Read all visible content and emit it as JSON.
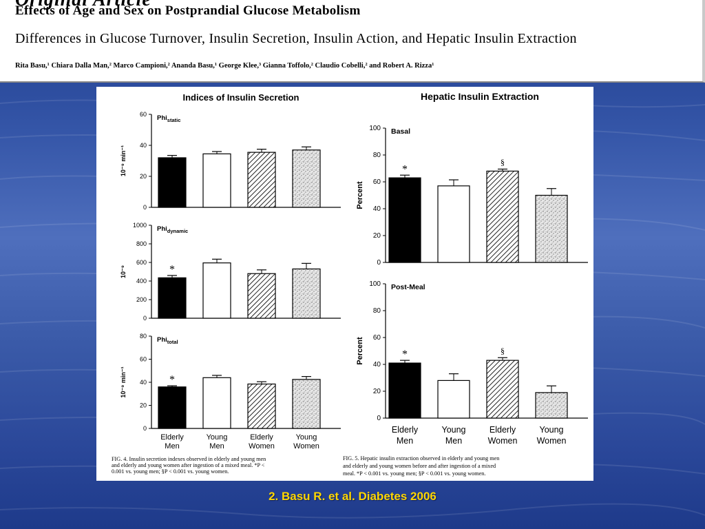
{
  "header": {
    "journal": "Original Article",
    "title": "Effects of Age and Sex on Postprandial Glucose Metabolism",
    "subtitle": "Differences in Glucose Turnover, Insulin Secretion, Insulin Action, and Hepatic Insulin Extraction",
    "authors": "Rita Basu,¹ Chiara Dalla Man,² Marco Campioni,² Ananda Basu,¹ George Klee,³ Gianna Toffolo,² Claudio Cobelli,² and Robert A. Rizza¹"
  },
  "figure": {
    "left_title": "Indices of Insulin Secretion",
    "right_title": "Hepatic Insulin Extraction",
    "left_caption": [
      "FIG. 4. Insulin secretion indexes observed in elderly and young men",
      "and elderly and young women after ingestion of a mixed meal. *P <",
      "0.001 vs. young men; §P < 0.001 vs. young women."
    ],
    "right_caption": [
      "FIG. 5. Hepatic insulin extraction observed in elderly and young men",
      "and elderly and young women before and after ingestion of a mixed",
      "meal. *P < 0.001 vs. young men; §P < 0.001 vs. young women."
    ]
  },
  "citation": "2. Basu R. et al. Diabetes 2006",
  "chart_data": [
    {
      "type": "bar",
      "panel": "left",
      "title": "Phi_static",
      "ylabel": "10⁻⁹ min⁻¹",
      "ylim": [
        0,
        60
      ],
      "yticks": [
        0,
        20,
        40,
        60
      ],
      "categories": [
        "Elderly Men",
        "Young Men",
        "Elderly Women",
        "Young Women"
      ],
      "values": [
        32,
        34.5,
        35.5,
        37
      ],
      "errors": [
        1.5,
        1.5,
        2,
        2
      ],
      "annotations": [
        "",
        "",
        "",
        ""
      ],
      "fills": [
        "black",
        "white",
        "hatch",
        "stipple"
      ],
      "show_xlabels": false
    },
    {
      "type": "bar",
      "panel": "left",
      "title": "Phi_dynamic",
      "ylabel": "10⁻⁹",
      "ylim": [
        0,
        1000
      ],
      "yticks": [
        0,
        200,
        400,
        600,
        800,
        1000
      ],
      "categories": [
        "Elderly Men",
        "Young Men",
        "Elderly Women",
        "Young Women"
      ],
      "values": [
        435,
        595,
        480,
        530
      ],
      "errors": [
        25,
        40,
        40,
        60
      ],
      "annotations": [
        "*",
        "",
        "",
        ""
      ],
      "fills": [
        "black",
        "white",
        "hatch",
        "stipple"
      ],
      "show_xlabels": false
    },
    {
      "type": "bar",
      "panel": "left",
      "title": "Phi_total",
      "ylabel": "10⁻⁹ min⁻¹",
      "ylim": [
        0,
        80
      ],
      "yticks": [
        0,
        20,
        40,
        60,
        80
      ],
      "categories": [
        "Elderly Men",
        "Young Men",
        "Elderly Women",
        "Young Women"
      ],
      "values": [
        36,
        44,
        38.5,
        42.5
      ],
      "errors": [
        1,
        2,
        2,
        2.5
      ],
      "annotations": [
        "*",
        "",
        "",
        ""
      ],
      "fills": [
        "black",
        "white",
        "hatch",
        "stipple"
      ],
      "show_xlabels": true
    },
    {
      "type": "bar",
      "panel": "right",
      "title": "Basal",
      "ylabel": "Percent",
      "ylim": [
        0,
        100
      ],
      "yticks": [
        0,
        20,
        40,
        60,
        80,
        100
      ],
      "categories": [
        "Elderly Men",
        "Young Men",
        "Elderly Women",
        "Young Women"
      ],
      "values": [
        63,
        57,
        68,
        50
      ],
      "errors": [
        2,
        4.5,
        1.5,
        5
      ],
      "annotations": [
        "*",
        "",
        "§",
        ""
      ],
      "fills": [
        "black",
        "white",
        "hatch",
        "stipple"
      ],
      "show_xlabels": false
    },
    {
      "type": "bar",
      "panel": "right",
      "title": "Post-Meal",
      "ylabel": "Percent",
      "ylim": [
        0,
        100
      ],
      "yticks": [
        0,
        20,
        40,
        60,
        80,
        100
      ],
      "categories": [
        "Elderly Men",
        "Young Men",
        "Elderly Women",
        "Young Women"
      ],
      "values": [
        41,
        28,
        43,
        19
      ],
      "errors": [
        2,
        5,
        2,
        5
      ],
      "annotations": [
        "*",
        "",
        "§",
        ""
      ],
      "fills": [
        "black",
        "white",
        "hatch",
        "stipple"
      ],
      "show_xlabels": true
    }
  ]
}
